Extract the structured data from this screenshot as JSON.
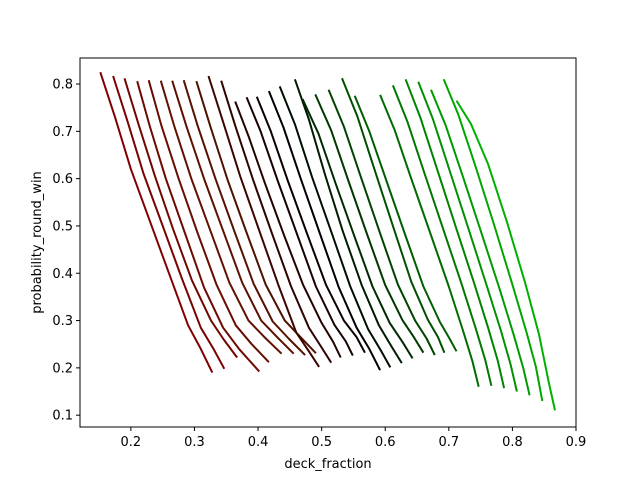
{
  "chart_data": {
    "type": "line",
    "title": "",
    "xlabel": "deck_fraction",
    "ylabel": "probability_round_win",
    "xlim": [
      0.12,
      0.9
    ],
    "ylim": [
      0.075,
      0.855
    ],
    "xticks": [
      "0.2",
      "0.3",
      "0.4",
      "0.5",
      "0.6",
      "0.7",
      "0.8",
      "0.9"
    ],
    "yticks": [
      "0.1",
      "0.2",
      "0.3",
      "0.4",
      "0.5",
      "0.6",
      "0.7",
      "0.8"
    ],
    "grid": false,
    "legend": "none",
    "series": [
      {
        "color": "#800000",
        "x": [
          0.152,
          0.175,
          0.2,
          0.23,
          0.26,
          0.29,
          0.31,
          0.328
        ],
        "y": [
          0.825,
          0.73,
          0.62,
          0.51,
          0.4,
          0.29,
          0.24,
          0.19
        ]
      },
      {
        "color": "#7a0200",
        "x": [
          0.172,
          0.195,
          0.22,
          0.25,
          0.28,
          0.31,
          0.33,
          0.347
        ],
        "y": [
          0.817,
          0.72,
          0.61,
          0.5,
          0.39,
          0.285,
          0.24,
          0.198
        ]
      },
      {
        "color": "#740600",
        "x": [
          0.19,
          0.212,
          0.238,
          0.266,
          0.296,
          0.326,
          0.346,
          0.367
        ],
        "y": [
          0.812,
          0.715,
          0.605,
          0.495,
          0.385,
          0.3,
          0.26,
          0.222
        ]
      },
      {
        "color": "#6e0a00",
        "x": [
          0.21,
          0.23,
          0.255,
          0.285,
          0.315,
          0.345,
          0.37,
          0.402
        ],
        "y": [
          0.806,
          0.71,
          0.6,
          0.485,
          0.37,
          0.285,
          0.24,
          0.192
        ]
      },
      {
        "color": "#680d00",
        "x": [
          0.228,
          0.248,
          0.275,
          0.305,
          0.335,
          0.365,
          0.39,
          0.417
        ],
        "y": [
          0.808,
          0.712,
          0.6,
          0.485,
          0.375,
          0.29,
          0.25,
          0.212
        ]
      },
      {
        "color": "#621000",
        "x": [
          0.247,
          0.268,
          0.295,
          0.325,
          0.355,
          0.385,
          0.41,
          0.437
        ],
        "y": [
          0.807,
          0.712,
          0.6,
          0.49,
          0.38,
          0.3,
          0.265,
          0.23
        ]
      },
      {
        "color": "#5c1100",
        "x": [
          0.265,
          0.287,
          0.315,
          0.345,
          0.375,
          0.405,
          0.43,
          0.456
        ],
        "y": [
          0.807,
          0.712,
          0.6,
          0.49,
          0.38,
          0.3,
          0.265,
          0.23
        ]
      },
      {
        "color": "#561200",
        "x": [
          0.283,
          0.305,
          0.333,
          0.363,
          0.393,
          0.423,
          0.448,
          0.474
        ],
        "y": [
          0.808,
          0.712,
          0.6,
          0.488,
          0.378,
          0.298,
          0.262,
          0.227
        ]
      },
      {
        "color": "#4e1300",
        "x": [
          0.303,
          0.325,
          0.352,
          0.382,
          0.412,
          0.442,
          0.466,
          0.491
        ],
        "y": [
          0.806,
          0.71,
          0.598,
          0.486,
          0.376,
          0.3,
          0.266,
          0.231
        ]
      },
      {
        "color": "#3c0500",
        "x": [
          0.322,
          0.345,
          0.372,
          0.402,
          0.432,
          0.46,
          0.48,
          0.496
        ],
        "y": [
          0.817,
          0.72,
          0.605,
          0.49,
          0.375,
          0.275,
          0.235,
          0.202
        ]
      },
      {
        "color": "#2e0400",
        "x": [
          0.342,
          0.364,
          0.392,
          0.422,
          0.452,
          0.48,
          0.5,
          0.515
        ],
        "y": [
          0.807,
          0.712,
          0.598,
          0.484,
          0.372,
          0.285,
          0.243,
          0.211
        ]
      },
      {
        "color": "#220300",
        "x": [
          0.364,
          0.385,
          0.411,
          0.441,
          0.471,
          0.5,
          0.518,
          0.53
        ],
        "y": [
          0.763,
          0.69,
          0.59,
          0.48,
          0.375,
          0.295,
          0.255,
          0.222
        ]
      },
      {
        "color": "#160200",
        "x": [
          0.382,
          0.404,
          0.431,
          0.461,
          0.491,
          0.52,
          0.538,
          0.549
        ],
        "y": [
          0.772,
          0.7,
          0.595,
          0.484,
          0.372,
          0.291,
          0.256,
          0.226
        ]
      },
      {
        "color": "#0b0100",
        "x": [
          0.398,
          0.42,
          0.447,
          0.477,
          0.507,
          0.535,
          0.555,
          0.568
        ],
        "y": [
          0.773,
          0.7,
          0.595,
          0.484,
          0.375,
          0.3,
          0.265,
          0.232
        ]
      },
      {
        "color": "#000000",
        "x": [
          0.417,
          0.44,
          0.467,
          0.497,
          0.527,
          0.555,
          0.575,
          0.592
        ],
        "y": [
          0.785,
          0.708,
          0.6,
          0.485,
          0.37,
          0.285,
          0.24,
          0.195
        ]
      },
      {
        "color": "#000e00",
        "x": [
          0.434,
          0.458,
          0.485,
          0.515,
          0.545,
          0.573,
          0.593,
          0.608
        ],
        "y": [
          0.795,
          0.715,
          0.603,
          0.488,
          0.372,
          0.282,
          0.237,
          0.201
        ]
      },
      {
        "color": "#001c00",
        "x": [
          0.458,
          0.48,
          0.505,
          0.533,
          0.563,
          0.59,
          0.61,
          0.626
        ],
        "y": [
          0.81,
          0.725,
          0.61,
          0.49,
          0.375,
          0.29,
          0.245,
          0.21
        ]
      },
      {
        "color": "#002a00",
        "x": [
          0.47,
          0.495,
          0.522,
          0.551,
          0.58,
          0.607,
          0.627,
          0.643
        ],
        "y": [
          0.768,
          0.695,
          0.59,
          0.48,
          0.372,
          0.295,
          0.255,
          0.22
        ]
      },
      {
        "color": "#003800",
        "x": [
          0.49,
          0.515,
          0.542,
          0.571,
          0.6,
          0.627,
          0.645,
          0.66
        ],
        "y": [
          0.778,
          0.702,
          0.596,
          0.484,
          0.375,
          0.301,
          0.265,
          0.232
        ]
      },
      {
        "color": "#004400",
        "x": [
          0.511,
          0.535,
          0.562,
          0.591,
          0.62,
          0.647,
          0.665,
          0.678
        ],
        "y": [
          0.788,
          0.71,
          0.602,
          0.488,
          0.376,
          0.3,
          0.262,
          0.227
        ]
      },
      {
        "color": "#005000",
        "x": [
          0.532,
          0.556,
          0.583,
          0.612,
          0.641,
          0.667,
          0.683,
          0.693
        ],
        "y": [
          0.812,
          0.732,
          0.62,
          0.5,
          0.382,
          0.302,
          0.265,
          0.232
        ]
      },
      {
        "color": "#005e00",
        "x": [
          0.552,
          0.575,
          0.602,
          0.631,
          0.66,
          0.686,
          0.701,
          0.712
        ],
        "y": [
          0.775,
          0.7,
          0.595,
          0.483,
          0.372,
          0.297,
          0.262,
          0.235
        ]
      },
      {
        "color": "#006b00",
        "x": [
          0.592,
          0.615,
          0.642,
          0.671,
          0.7,
          0.722,
          0.737,
          0.747
        ],
        "y": [
          0.777,
          0.702,
          0.596,
          0.484,
          0.372,
          0.28,
          0.215,
          0.16
        ]
      },
      {
        "color": "#007800",
        "x": [
          0.612,
          0.635,
          0.662,
          0.691,
          0.72,
          0.742,
          0.757,
          0.767
        ],
        "y": [
          0.797,
          0.72,
          0.61,
          0.494,
          0.378,
          0.285,
          0.218,
          0.162
        ]
      },
      {
        "color": "#008400",
        "x": [
          0.632,
          0.655,
          0.682,
          0.711,
          0.74,
          0.762,
          0.777,
          0.787
        ],
        "y": [
          0.81,
          0.73,
          0.618,
          0.498,
          0.378,
          0.284,
          0.215,
          0.157
        ]
      },
      {
        "color": "#009000",
        "x": [
          0.652,
          0.675,
          0.702,
          0.731,
          0.76,
          0.782,
          0.797,
          0.807
        ],
        "y": [
          0.805,
          0.726,
          0.614,
          0.494,
          0.372,
          0.278,
          0.208,
          0.15
        ]
      },
      {
        "color": "#009b00",
        "x": [
          0.672,
          0.695,
          0.722,
          0.751,
          0.78,
          0.802,
          0.817,
          0.827
        ],
        "y": [
          0.788,
          0.713,
          0.605,
          0.486,
          0.366,
          0.27,
          0.2,
          0.142
        ]
      },
      {
        "color": "#00a600",
        "x": [
          0.692,
          0.715,
          0.742,
          0.771,
          0.8,
          0.822,
          0.837,
          0.847
        ],
        "y": [
          0.81,
          0.735,
          0.626,
          0.503,
          0.376,
          0.276,
          0.202,
          0.13
        ]
      },
      {
        "color": "#00b000",
        "x": [
          0.712,
          0.735,
          0.762,
          0.791,
          0.82,
          0.842,
          0.857,
          0.867
        ],
        "y": [
          0.765,
          0.715,
          0.63,
          0.51,
          0.38,
          0.27,
          0.17,
          0.11
        ]
      }
    ]
  }
}
